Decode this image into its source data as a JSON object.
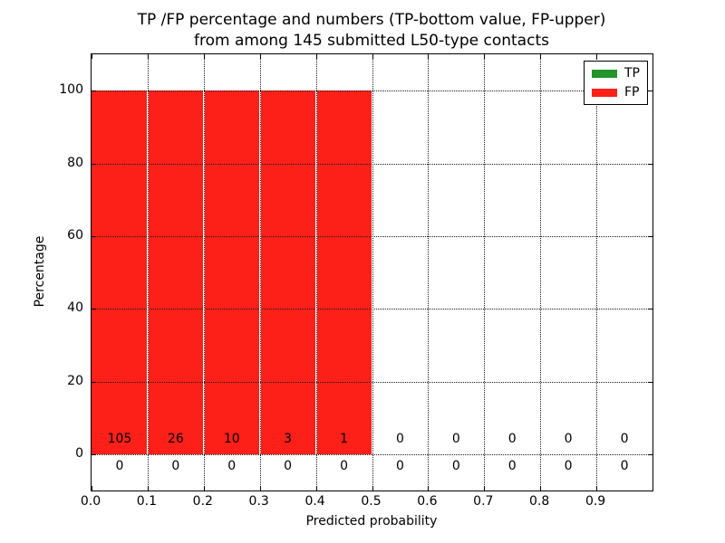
{
  "chart_data": {
    "type": "bar",
    "title": "TP /FP percentage and numbers (TP-bottom value, FP-upper)\nfrom among 145 submitted L50-type contacts",
    "xlabel": "Predicted probability",
    "ylabel": "Percentage",
    "xlim": [
      0.0,
      1.0
    ],
    "ylim": [
      -10,
      110
    ],
    "xtick_labels": [
      "0.0",
      "0.1",
      "0.2",
      "0.3",
      "0.4",
      "0.5",
      "0.6",
      "0.7",
      "0.8",
      "0.9"
    ],
    "xtick_values": [
      0.0,
      0.1,
      0.2,
      0.3,
      0.4,
      0.5,
      0.6,
      0.7,
      0.8,
      0.9
    ],
    "ytick_labels": [
      "0",
      "20",
      "40",
      "60",
      "80",
      "100"
    ],
    "ytick_values": [
      0,
      20,
      40,
      60,
      80,
      100
    ],
    "grid": true,
    "grid_style": "dotted",
    "legend_position": "upper right",
    "bin_edges": [
      0.0,
      0.1,
      0.2,
      0.3,
      0.4,
      0.5,
      0.6,
      0.7,
      0.8,
      0.9,
      1.0
    ],
    "total_submitted": 145,
    "series": [
      {
        "name": "TP",
        "color": "#229428",
        "percentages": [
          0,
          0,
          0,
          0,
          0,
          0,
          0,
          0,
          0,
          0
        ],
        "counts": [
          0,
          0,
          0,
          0,
          0,
          0,
          0,
          0,
          0,
          0
        ]
      },
      {
        "name": "FP",
        "color": "#fd2019",
        "percentages": [
          100,
          100,
          100,
          100,
          100,
          0,
          0,
          0,
          0,
          0
        ],
        "counts": [
          105,
          26,
          10,
          3,
          1,
          0,
          0,
          0,
          0,
          0
        ]
      }
    ]
  },
  "legend": {
    "items": [
      {
        "label": "TP",
        "color": "#229428"
      },
      {
        "label": "FP",
        "color": "#fd2019"
      }
    ]
  }
}
